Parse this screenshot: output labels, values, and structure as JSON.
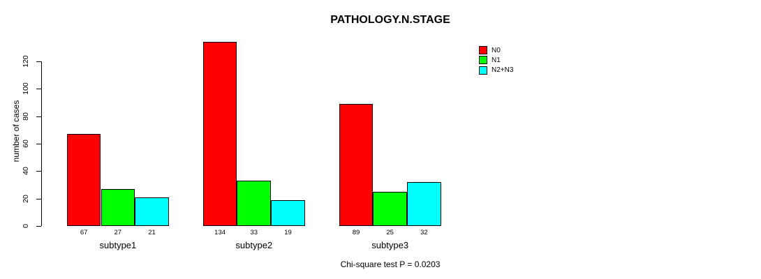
{
  "chart_data": {
    "type": "bar",
    "title": "PATHOLOGY.N.STAGE",
    "ylabel": "number of cases",
    "xlabel": "",
    "footnote": "Chi-square test P = 0.0203",
    "categories": [
      "subtype1",
      "subtype2",
      "subtype3"
    ],
    "series": [
      {
        "name": "N0",
        "color": "#FF0000",
        "values": [
          67,
          134,
          89
        ]
      },
      {
        "name": "N1",
        "color": "#00FF00",
        "values": [
          27,
          33,
          25
        ]
      },
      {
        "name": "N2+N3",
        "color": "#00FFFF",
        "values": [
          21,
          19,
          32
        ]
      }
    ],
    "bar_value_labels": [
      [
        "67",
        "27",
        "21"
      ],
      [
        "134",
        "33",
        "19"
      ],
      [
        "89",
        "25",
        "32"
      ]
    ],
    "yticks": [
      0,
      20,
      40,
      60,
      80,
      100,
      120
    ],
    "ylim": [
      0,
      134
    ],
    "grid": false,
    "legend_position": "top-right-outside",
    "colors": {
      "axis": "#000000",
      "text": "#000000",
      "background": "#FFFFFF"
    }
  }
}
